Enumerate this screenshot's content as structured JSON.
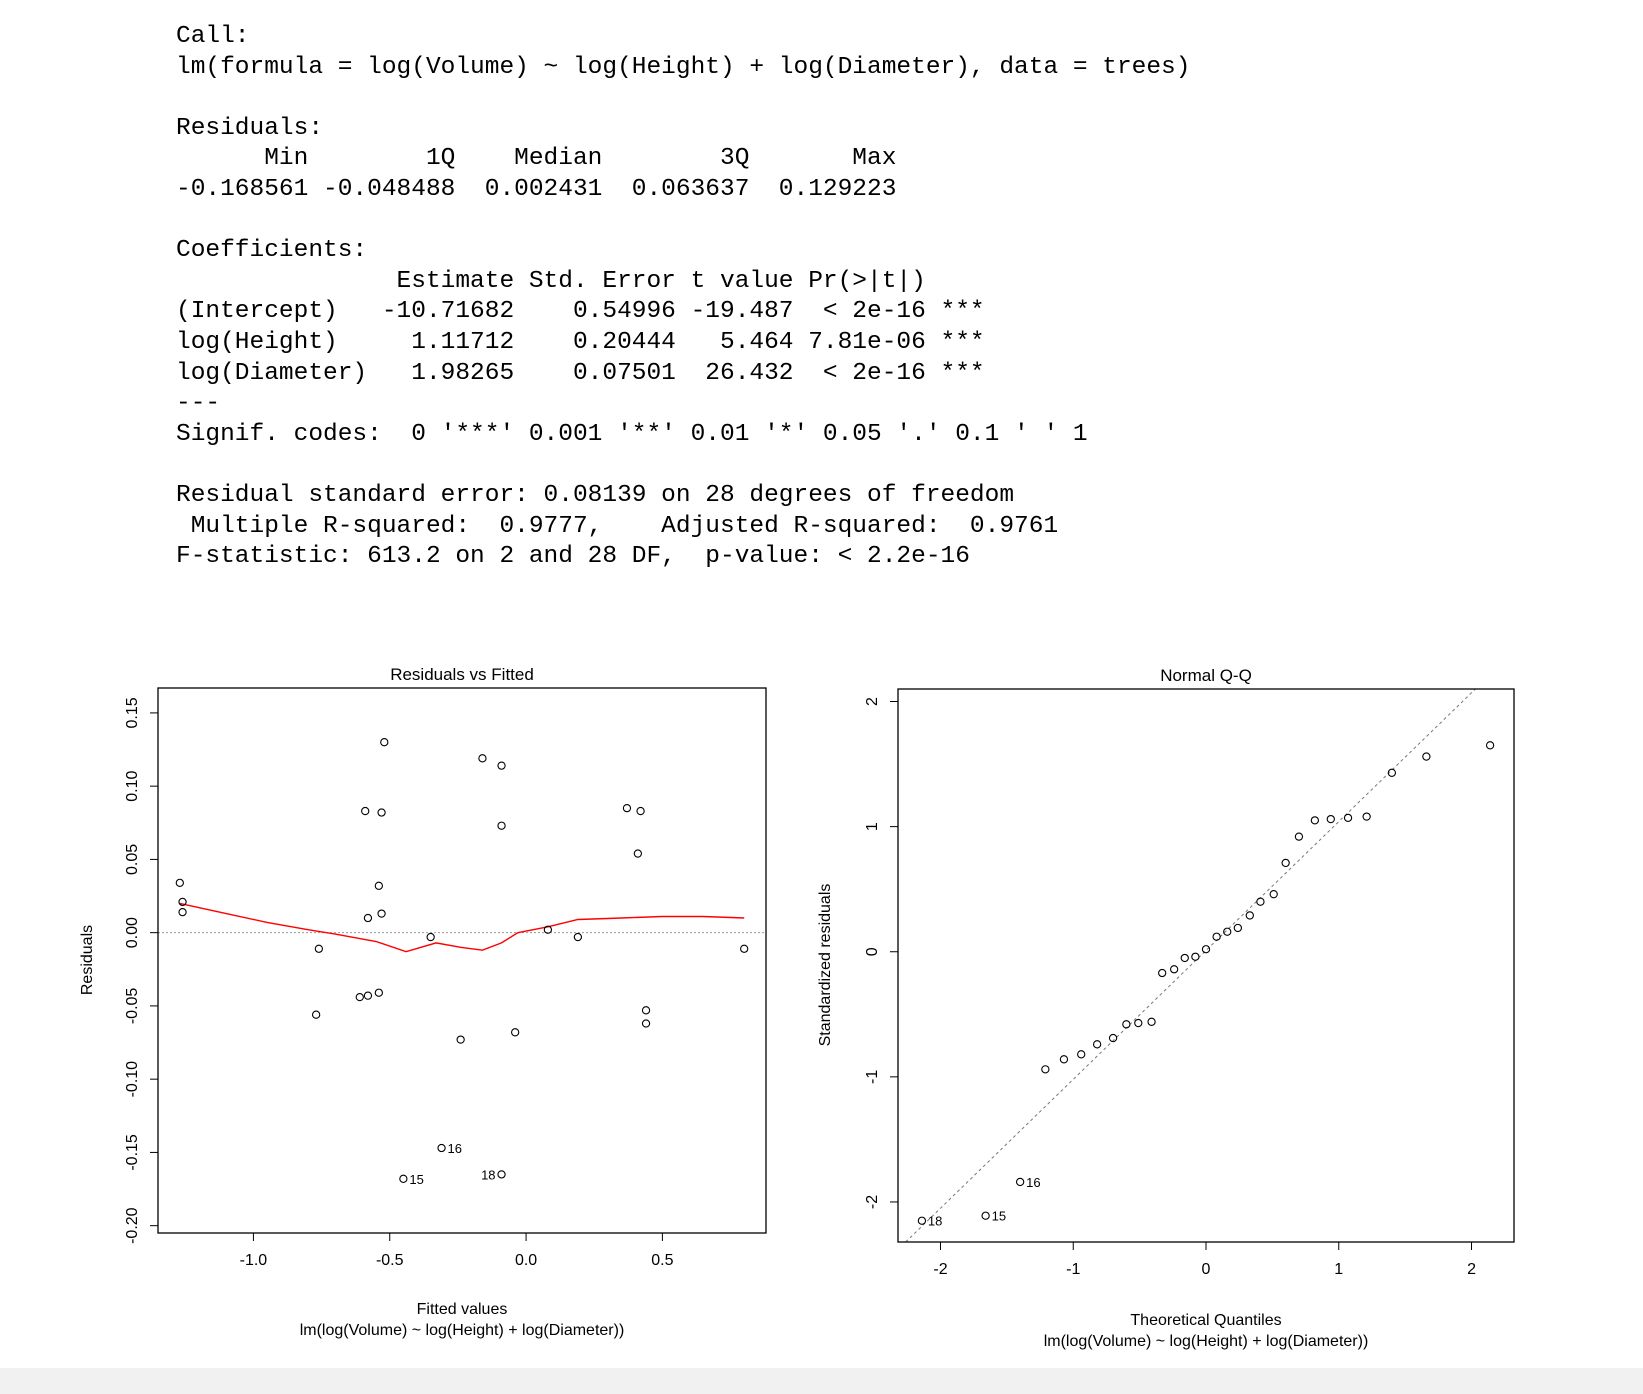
{
  "summary_lines": [
    "Call:",
    "lm(formula = log(Volume) ~ log(Height) + log(Diameter), data = trees)",
    "",
    "Residuals:",
    "      Min        1Q    Median        3Q       Max",
    "-0.168561 -0.048488  0.002431  0.063637  0.129223",
    "",
    "Coefficients:",
    "               Estimate Std. Error t value Pr(>|t|)",
    "(Intercept)   -10.71682    0.54996 -19.487  < 2e-16 ***",
    "log(Height)     1.11712    0.20444   5.464 7.81e-06 ***",
    "log(Diameter)   1.98265    0.07501  26.432  < 2e-16 ***",
    "---",
    "Signif. codes:  0 '***' 0.001 '**' 0.01 '*' 0.05 '.' 0.1 ' ' 1",
    "",
    "Residual standard error: 0.08139 on 28 degrees of freedom",
    " Multiple R-squared:  0.9777,    Adjusted R-squared:  0.9761",
    "F-statistic: 613.2 on 2 and 28 DF,  p-value: < 2.2e-16"
  ],
  "chart_data": [
    {
      "type": "scatter",
      "title": "Residuals vs Fitted",
      "xlabel": "Fitted values",
      "xsublabel": "lm(log(Volume) ~ log(Height) + log(Diameter))",
      "ylabel": "Residuals",
      "xlim": [
        -1.35,
        0.88
      ],
      "ylim": [
        -0.205,
        0.167
      ],
      "xticks": [
        -1.0,
        -0.5,
        0.0,
        0.5
      ],
      "xtick_labels": [
        "-1.0",
        "-0.5",
        "0.0",
        "0.5"
      ],
      "yticks": [
        -0.2,
        -0.15,
        -0.1,
        -0.05,
        0.0,
        0.05,
        0.1,
        0.15
      ],
      "ytick_labels": [
        "-0.20",
        "-0.15",
        "-0.10",
        "-0.05",
        "0.00",
        "0.05",
        "0.10",
        "0.15"
      ],
      "reference_line_y": 0,
      "smooth_color": "#ff0000",
      "points": [
        {
          "x": -1.27,
          "y": 0.034
        },
        {
          "x": -1.26,
          "y": 0.021
        },
        {
          "x": -1.26,
          "y": 0.014
        },
        {
          "x": -0.76,
          "y": -0.011
        },
        {
          "x": -0.77,
          "y": -0.056
        },
        {
          "x": -0.61,
          "y": -0.044
        },
        {
          "x": -0.58,
          "y": -0.043
        },
        {
          "x": -0.54,
          "y": -0.041
        },
        {
          "x": -0.59,
          "y": 0.083
        },
        {
          "x": -0.53,
          "y": 0.082
        },
        {
          "x": -0.52,
          "y": 0.13
        },
        {
          "x": -0.54,
          "y": 0.032
        },
        {
          "x": -0.58,
          "y": 0.01
        },
        {
          "x": -0.53,
          "y": 0.013
        },
        {
          "x": -0.35,
          "y": -0.003
        },
        {
          "x": -0.24,
          "y": -0.073
        },
        {
          "x": -0.16,
          "y": 0.119
        },
        {
          "x": -0.09,
          "y": 0.114
        },
        {
          "x": -0.09,
          "y": 0.073
        },
        {
          "x": -0.04,
          "y": -0.068
        },
        {
          "x": 0.08,
          "y": 0.002
        },
        {
          "x": 0.19,
          "y": -0.003
        },
        {
          "x": 0.37,
          "y": 0.085
        },
        {
          "x": 0.42,
          "y": 0.083
        },
        {
          "x": 0.41,
          "y": 0.054
        },
        {
          "x": 0.44,
          "y": -0.053
        },
        {
          "x": 0.44,
          "y": -0.062
        },
        {
          "x": 0.8,
          "y": -0.011
        },
        {
          "x": -0.45,
          "y": -0.168,
          "label": "15"
        },
        {
          "x": -0.31,
          "y": -0.147,
          "label": "16"
        },
        {
          "x": -0.09,
          "y": -0.165,
          "label": "18"
        }
      ],
      "smooth": [
        [
          -1.27,
          0.02
        ],
        [
          -1.1,
          0.013
        ],
        [
          -0.95,
          0.007
        ],
        [
          -0.8,
          0.002
        ],
        [
          -0.7,
          -0.001
        ],
        [
          -0.55,
          -0.006
        ],
        [
          -0.44,
          -0.013
        ],
        [
          -0.33,
          -0.007
        ],
        [
          -0.24,
          -0.01
        ],
        [
          -0.16,
          -0.012
        ],
        [
          -0.09,
          -0.007
        ],
        [
          -0.03,
          0.0
        ],
        [
          0.08,
          0.004
        ],
        [
          0.19,
          0.009
        ],
        [
          0.35,
          0.01
        ],
        [
          0.5,
          0.011
        ],
        [
          0.65,
          0.011
        ],
        [
          0.8,
          0.01
        ]
      ]
    },
    {
      "type": "scatter",
      "title": "Normal Q-Q",
      "xlabel": "Theoretical Quantiles",
      "xsublabel": "lm(log(Volume) ~ log(Height) + log(Diameter))",
      "ylabel": "Standardized residuals",
      "xlim": [
        -2.32,
        2.32
      ],
      "ylim": [
        -2.32,
        2.1
      ],
      "xticks": [
        -2,
        -1,
        0,
        1,
        2
      ],
      "xtick_labels": [
        "-2",
        "-1",
        "0",
        "1",
        "2"
      ],
      "yticks": [
        -2,
        -1,
        0,
        1,
        2
      ],
      "ytick_labels": [
        "-2",
        "-1",
        "0",
        "1",
        "2"
      ],
      "reference_line": {
        "intercept": 0.01,
        "slope": 1.03
      },
      "points": [
        {
          "x": -2.14,
          "y": -2.15,
          "label": "18"
        },
        {
          "x": -1.66,
          "y": -2.11,
          "label": "15"
        },
        {
          "x": -1.4,
          "y": -1.84,
          "label": "16"
        },
        {
          "x": -1.21,
          "y": -0.94
        },
        {
          "x": -1.07,
          "y": -0.86
        },
        {
          "x": -0.94,
          "y": -0.82
        },
        {
          "x": -0.82,
          "y": -0.74
        },
        {
          "x": -0.7,
          "y": -0.69
        },
        {
          "x": -0.6,
          "y": -0.58
        },
        {
          "x": -0.51,
          "y": -0.57
        },
        {
          "x": -0.41,
          "y": -0.56
        },
        {
          "x": -0.33,
          "y": -0.17
        },
        {
          "x": -0.24,
          "y": -0.14
        },
        {
          "x": -0.16,
          "y": -0.05
        },
        {
          "x": -0.08,
          "y": -0.04
        },
        {
          "x": 0.0,
          "y": 0.02
        },
        {
          "x": 0.08,
          "y": 0.12
        },
        {
          "x": 0.16,
          "y": 0.16
        },
        {
          "x": 0.24,
          "y": 0.19
        },
        {
          "x": 0.33,
          "y": 0.29
        },
        {
          "x": 0.41,
          "y": 0.4
        },
        {
          "x": 0.51,
          "y": 0.46
        },
        {
          "x": 0.6,
          "y": 0.71
        },
        {
          "x": 0.7,
          "y": 0.92
        },
        {
          "x": 0.82,
          "y": 1.05
        },
        {
          "x": 0.94,
          "y": 1.06
        },
        {
          "x": 1.07,
          "y": 1.07
        },
        {
          "x": 1.21,
          "y": 1.08
        },
        {
          "x": 1.4,
          "y": 1.43
        },
        {
          "x": 1.66,
          "y": 1.56
        },
        {
          "x": 2.14,
          "y": 1.65
        }
      ]
    }
  ]
}
